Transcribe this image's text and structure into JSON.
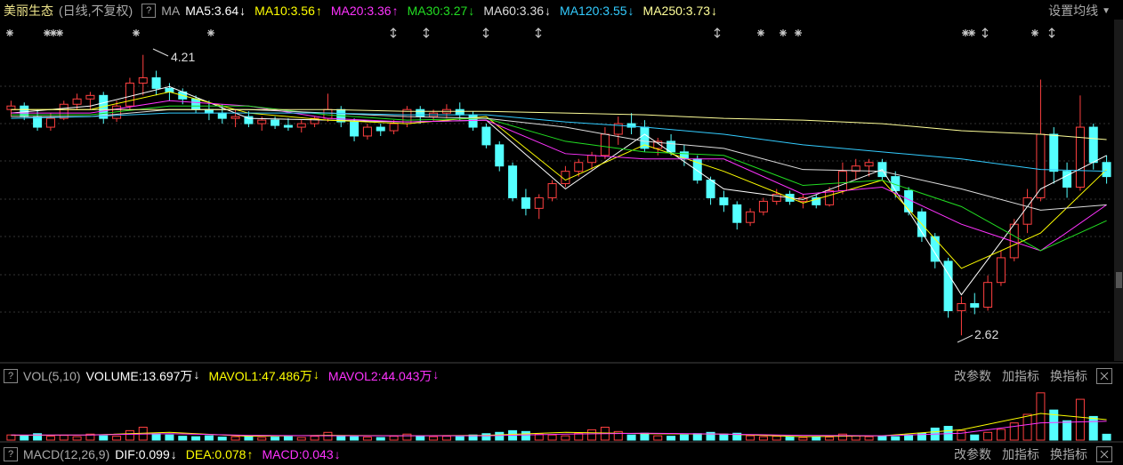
{
  "ui": {
    "stock_name": "美丽生态",
    "period": "(日线,不复权)",
    "help": "?",
    "indicator": "MA",
    "ma_button": "设置均线",
    "vol_help": "?",
    "vol_name": "VOL(5,10)",
    "vol_buttons": [
      "改参数",
      "加指标",
      "换指标"
    ],
    "macd_help": "?",
    "macd_name": "MACD(12,26,9)",
    "macd_buttons": [
      "改参数",
      "加指标",
      "换指标"
    ],
    "macd_items": [
      {
        "label": "DIF:0.099",
        "arrow": "↓",
        "color": "#ffffff"
      },
      {
        "label": "DEA:0.078",
        "arrow": "↑",
        "color": "#ffff00"
      },
      {
        "label": "MACD:0.043",
        "arrow": "↓",
        "color": "#ff33ff"
      }
    ]
  },
  "chart_data": [
    {
      "type": "candlestick",
      "ylim": [
        2.48,
        4.41
      ],
      "up_color": "#ff4040",
      "down_color": "#54ffff",
      "annotations": [
        "4.21",
        "2.62"
      ],
      "candles": [
        [
          3.9,
          3.95,
          3.86,
          3.92
        ],
        [
          3.92,
          3.94,
          3.84,
          3.86
        ],
        [
          3.86,
          3.9,
          3.78,
          3.8
        ],
        [
          3.8,
          3.88,
          3.78,
          3.85
        ],
        [
          3.85,
          3.95,
          3.84,
          3.93
        ],
        [
          3.93,
          3.99,
          3.9,
          3.96
        ],
        [
          3.96,
          4.0,
          3.9,
          3.98
        ],
        [
          3.98,
          4.0,
          3.82,
          3.85
        ],
        [
          3.85,
          3.95,
          3.83,
          3.92
        ],
        [
          3.92,
          4.08,
          3.9,
          4.05
        ],
        [
          4.05,
          4.21,
          3.98,
          4.08
        ],
        [
          4.08,
          4.12,
          3.98,
          4.02
        ],
        [
          4.02,
          4.05,
          3.95,
          4.0
        ],
        [
          4.0,
          4.02,
          3.93,
          3.96
        ],
        [
          3.96,
          3.98,
          3.88,
          3.9
        ],
        [
          3.9,
          3.95,
          3.84,
          3.88
        ],
        [
          3.88,
          3.93,
          3.82,
          3.85
        ],
        [
          3.85,
          3.9,
          3.8,
          3.86
        ],
        [
          3.86,
          3.89,
          3.8,
          3.82
        ],
        [
          3.82,
          3.86,
          3.78,
          3.84
        ],
        [
          3.84,
          3.86,
          3.79,
          3.81
        ],
        [
          3.81,
          3.85,
          3.78,
          3.8
        ],
        [
          3.8,
          3.84,
          3.77,
          3.82
        ],
        [
          3.82,
          3.86,
          3.8,
          3.85
        ],
        [
          3.85,
          3.99,
          3.83,
          3.9
        ],
        [
          3.9,
          3.92,
          3.8,
          3.83
        ],
        [
          3.83,
          3.85,
          3.72,
          3.75
        ],
        [
          3.75,
          3.82,
          3.73,
          3.8
        ],
        [
          3.8,
          3.82,
          3.75,
          3.78
        ],
        [
          3.78,
          3.84,
          3.76,
          3.82
        ],
        [
          3.82,
          3.92,
          3.8,
          3.9
        ],
        [
          3.9,
          3.92,
          3.82,
          3.86
        ],
        [
          3.86,
          3.9,
          3.83,
          3.88
        ],
        [
          3.88,
          3.93,
          3.85,
          3.9
        ],
        [
          3.9,
          3.94,
          3.84,
          3.87
        ],
        [
          3.87,
          3.89,
          3.78,
          3.8
        ],
        [
          3.8,
          3.82,
          3.68,
          3.7
        ],
        [
          3.7,
          3.72,
          3.55,
          3.58
        ],
        [
          3.58,
          3.6,
          3.38,
          3.4
        ],
        [
          3.4,
          3.45,
          3.3,
          3.34
        ],
        [
          3.34,
          3.42,
          3.28,
          3.4
        ],
        [
          3.4,
          3.5,
          3.38,
          3.48
        ],
        [
          3.48,
          3.58,
          3.46,
          3.55
        ],
        [
          3.55,
          3.62,
          3.52,
          3.6
        ],
        [
          3.6,
          3.66,
          3.56,
          3.64
        ],
        [
          3.64,
          3.8,
          3.62,
          3.76
        ],
        [
          3.76,
          3.86,
          3.7,
          3.82
        ],
        [
          3.82,
          3.88,
          3.76,
          3.8
        ],
        [
          3.8,
          3.84,
          3.66,
          3.68
        ],
        [
          3.68,
          3.74,
          3.64,
          3.72
        ],
        [
          3.72,
          3.76,
          3.64,
          3.66
        ],
        [
          3.66,
          3.7,
          3.58,
          3.62
        ],
        [
          3.62,
          3.64,
          3.48,
          3.5
        ],
        [
          3.5,
          3.52,
          3.36,
          3.4
        ],
        [
          3.4,
          3.44,
          3.32,
          3.36
        ],
        [
          3.36,
          3.38,
          3.22,
          3.26
        ],
        [
          3.26,
          3.34,
          3.24,
          3.32
        ],
        [
          3.32,
          3.4,
          3.3,
          3.38
        ],
        [
          3.38,
          3.45,
          3.36,
          3.42
        ],
        [
          3.42,
          3.44,
          3.36,
          3.38
        ],
        [
          3.38,
          3.42,
          3.34,
          3.4
        ],
        [
          3.4,
          3.42,
          3.34,
          3.36
        ],
        [
          3.36,
          3.46,
          3.35,
          3.44
        ],
        [
          3.44,
          3.6,
          3.42,
          3.55
        ],
        [
          3.55,
          3.62,
          3.5,
          3.58
        ],
        [
          3.58,
          3.62,
          3.52,
          3.6
        ],
        [
          3.6,
          3.62,
          3.5,
          3.52
        ],
        [
          3.52,
          3.55,
          3.4,
          3.44
        ],
        [
          3.44,
          3.46,
          3.3,
          3.32
        ],
        [
          3.32,
          3.34,
          3.15,
          3.18
        ],
        [
          3.18,
          3.2,
          3.0,
          3.04
        ],
        [
          3.04,
          3.06,
          2.72,
          2.76
        ],
        [
          2.76,
          2.84,
          2.62,
          2.8
        ],
        [
          2.8,
          2.86,
          2.74,
          2.78
        ],
        [
          2.78,
          2.96,
          2.76,
          2.92
        ],
        [
          2.92,
          3.1,
          2.9,
          3.06
        ],
        [
          3.06,
          3.28,
          3.04,
          3.25
        ],
        [
          3.25,
          3.45,
          3.2,
          3.4
        ],
        [
          3.4,
          4.07,
          3.38,
          3.76
        ],
        [
          3.76,
          3.8,
          3.48,
          3.55
        ],
        [
          3.55,
          3.6,
          3.4,
          3.46
        ],
        [
          3.46,
          3.98,
          3.44,
          3.8
        ],
        [
          3.8,
          3.82,
          3.56,
          3.6
        ],
        [
          3.6,
          3.64,
          3.48,
          3.52
        ]
      ],
      "series": [
        {
          "name": "MA5:3.64",
          "arrow": "↓",
          "color": "#ffffff",
          "x": [
            0,
            6,
            12,
            18,
            24,
            30,
            36,
            42,
            48,
            54,
            60,
            66,
            72,
            78,
            83
          ],
          "values": [
            3.88,
            3.92,
            4.03,
            3.85,
            3.84,
            3.83,
            3.84,
            3.45,
            3.76,
            3.45,
            3.39,
            3.56,
            2.85,
            3.45,
            3.64
          ]
        },
        {
          "name": "MA10:3.56",
          "arrow": "↑",
          "color": "#ffff00",
          "x": [
            0,
            6,
            12,
            18,
            24,
            30,
            36,
            42,
            48,
            54,
            60,
            66,
            72,
            78,
            83
          ],
          "values": [
            3.9,
            3.9,
            4.0,
            3.88,
            3.84,
            3.82,
            3.86,
            3.5,
            3.7,
            3.55,
            3.37,
            3.5,
            3.0,
            3.2,
            3.56
          ]
        },
        {
          "name": "MA20:3.36",
          "arrow": "↑",
          "color": "#ff33ff",
          "x": [
            0,
            6,
            12,
            18,
            24,
            30,
            36,
            42,
            48,
            54,
            60,
            66,
            72,
            78,
            83
          ],
          "values": [
            3.88,
            3.88,
            3.95,
            3.92,
            3.85,
            3.83,
            3.84,
            3.65,
            3.62,
            3.62,
            3.42,
            3.46,
            3.25,
            3.1,
            3.36
          ]
        },
        {
          "name": "MA30:3.27",
          "arrow": "↓",
          "color": "#22dd22",
          "x": [
            0,
            6,
            12,
            18,
            24,
            30,
            36,
            42,
            48,
            54,
            60,
            66,
            72,
            78,
            83
          ],
          "values": [
            3.87,
            3.87,
            3.92,
            3.92,
            3.87,
            3.84,
            3.85,
            3.72,
            3.66,
            3.64,
            3.47,
            3.5,
            3.35,
            3.1,
            3.27
          ]
        },
        {
          "name": "MA60:3.36",
          "arrow": "↓",
          "color": "#dddddd",
          "x": [
            0,
            6,
            12,
            18,
            24,
            30,
            36,
            42,
            48,
            54,
            60,
            66,
            72,
            78,
            83
          ],
          "values": [
            3.86,
            3.86,
            3.9,
            3.9,
            3.88,
            3.86,
            3.85,
            3.8,
            3.72,
            3.68,
            3.56,
            3.55,
            3.45,
            3.33,
            3.36
          ]
        },
        {
          "name": "MA120:3.55",
          "arrow": "↓",
          "color": "#33ccff",
          "x": [
            0,
            6,
            12,
            18,
            24,
            30,
            36,
            42,
            48,
            54,
            60,
            66,
            72,
            78,
            83
          ],
          "values": [
            3.85,
            3.86,
            3.88,
            3.88,
            3.88,
            3.87,
            3.87,
            3.83,
            3.8,
            3.76,
            3.7,
            3.66,
            3.62,
            3.56,
            3.55
          ]
        },
        {
          "name": "MA250:3.73",
          "arrow": "↓",
          "color": "#ffff99",
          "x": [
            0,
            6,
            12,
            18,
            24,
            30,
            36,
            42,
            48,
            54,
            60,
            66,
            72,
            78,
            83
          ],
          "values": [
            3.9,
            3.9,
            3.9,
            3.9,
            3.9,
            3.89,
            3.89,
            3.88,
            3.87,
            3.85,
            3.84,
            3.82,
            3.78,
            3.76,
            3.73
          ]
        }
      ]
    },
    {
      "type": "bar",
      "ylim": [
        0,
        120
      ],
      "series": [
        {
          "name": "VOLUME:13.697万",
          "arrow": "↓",
          "color": "#ffffff",
          "values": [
            12,
            10,
            15,
            9,
            11,
            8,
            14,
            10,
            9,
            22,
            30,
            15,
            12,
            9,
            8,
            10,
            7,
            8,
            9,
            6,
            7,
            8,
            6,
            9,
            18,
            10,
            8,
            7,
            6,
            9,
            14,
            10,
            8,
            9,
            8,
            12,
            15,
            18,
            22,
            20,
            14,
            12,
            10,
            16,
            24,
            30,
            20,
            12,
            16,
            10,
            9,
            12,
            15,
            18,
            14,
            16,
            10,
            8,
            9,
            7,
            6,
            8,
            7,
            14,
            10,
            8,
            9,
            8,
            12,
            16,
            28,
            32,
            22,
            12,
            18,
            25,
            40,
            60,
            110,
            70,
            45,
            95,
            55,
            13.697
          ]
        },
        {
          "name": "MAVOL1:47.486万",
          "arrow": "↓",
          "color": "#ffff00",
          "x": [
            0,
            6,
            12,
            18,
            24,
            30,
            36,
            42,
            48,
            54,
            60,
            66,
            72,
            78,
            83
          ],
          "values": [
            11,
            12,
            18,
            9,
            11,
            10,
            11,
            18,
            15,
            14,
            8,
            10,
            24,
            62,
            47.486
          ]
        },
        {
          "name": "MAVOL2:44.043万",
          "arrow": "↓",
          "color": "#ff33ff",
          "x": [
            0,
            6,
            12,
            18,
            24,
            30,
            36,
            42,
            48,
            54,
            60,
            66,
            72,
            78,
            83
          ],
          "values": [
            12,
            12,
            15,
            11,
            10,
            10,
            10,
            14,
            16,
            14,
            11,
            10,
            16,
            40,
            44.043
          ]
        }
      ]
    }
  ]
}
